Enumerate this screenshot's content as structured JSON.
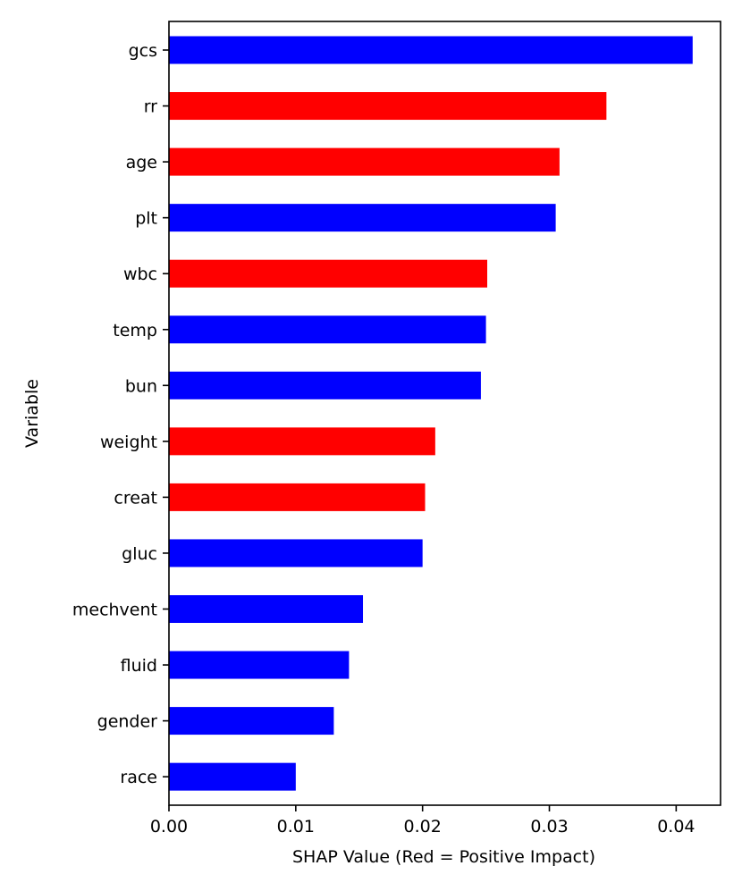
{
  "chart_data": {
    "type": "bar",
    "orientation": "horizontal",
    "xlabel": "SHAP Value (Red = Positive Impact)",
    "ylabel": "Variable",
    "xlim": [
      0,
      0.0435
    ],
    "xticks": [
      0.0,
      0.01,
      0.02,
      0.03,
      0.04
    ],
    "xtick_labels": [
      "0.00",
      "0.01",
      "0.02",
      "0.03",
      "0.04"
    ],
    "grid": false,
    "legend": "none",
    "categories": [
      "gcs",
      "rr",
      "age",
      "plt",
      "wbc",
      "temp",
      "bun",
      "weight",
      "creat",
      "gluc",
      "mechvent",
      "fluid",
      "gender",
      "race"
    ],
    "values": [
      0.0413,
      0.0345,
      0.0308,
      0.0305,
      0.0251,
      0.025,
      0.0246,
      0.021,
      0.0202,
      0.02,
      0.0153,
      0.0142,
      0.013,
      0.01
    ],
    "impact": [
      "negative",
      "positive",
      "positive",
      "negative",
      "positive",
      "negative",
      "negative",
      "positive",
      "positive",
      "negative",
      "negative",
      "negative",
      "negative",
      "negative"
    ],
    "colors": {
      "positive": "#ff0000",
      "negative": "#0000ff"
    }
  }
}
